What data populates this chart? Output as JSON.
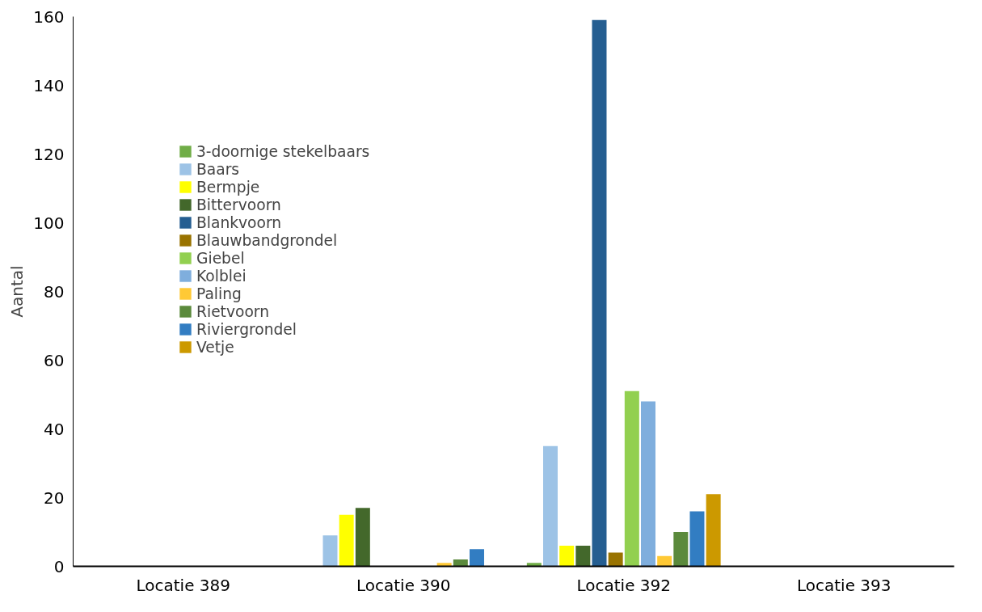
{
  "chart_data": {
    "type": "bar",
    "ylabel": "Aantal",
    "categories": [
      "Locatie 389",
      "Locatie 390",
      "Locatie 392",
      "Locatie 393"
    ],
    "ylim": [
      0,
      160
    ],
    "yticks": [
      0,
      20,
      40,
      60,
      80,
      100,
      120,
      140,
      160
    ],
    "grid": false,
    "legend": "top left",
    "series": [
      {
        "name": "3-doornige stekelbaars",
        "color": "#70ad47",
        "values": [
          null,
          null,
          1,
          null
        ]
      },
      {
        "name": "Baars",
        "color": "#9dc3e6",
        "values": [
          null,
          9,
          35,
          null
        ]
      },
      {
        "name": "Bermpje",
        "color": "#ffff00",
        "values": [
          null,
          15,
          6,
          null
        ]
      },
      {
        "name": "Bittervoorn",
        "color": "#43682b",
        "values": [
          null,
          17,
          6,
          null
        ]
      },
      {
        "name": "Blankvoorn",
        "color": "#255e91",
        "values": [
          null,
          null,
          159,
          null
        ]
      },
      {
        "name": "Blauwbandgrondel",
        "color": "#997300",
        "values": [
          null,
          null,
          4,
          null
        ]
      },
      {
        "name": "Giebel",
        "color": "#92d050",
        "values": [
          null,
          null,
          51,
          null
        ]
      },
      {
        "name": "Kolblei",
        "color": "#7faedd",
        "values": [
          null,
          null,
          48,
          null
        ]
      },
      {
        "name": "Paling",
        "color": "#ffc935",
        "values": [
          null,
          1,
          3,
          null
        ]
      },
      {
        "name": "Rietvoorn",
        "color": "#5b8a3c",
        "values": [
          null,
          2,
          10,
          null
        ]
      },
      {
        "name": "Riviergrondel",
        "color": "#327dc2",
        "values": [
          null,
          5,
          16,
          null
        ]
      },
      {
        "name": "Vetje",
        "color": "#cc9900",
        "values": [
          null,
          null,
          21,
          null
        ]
      }
    ]
  }
}
